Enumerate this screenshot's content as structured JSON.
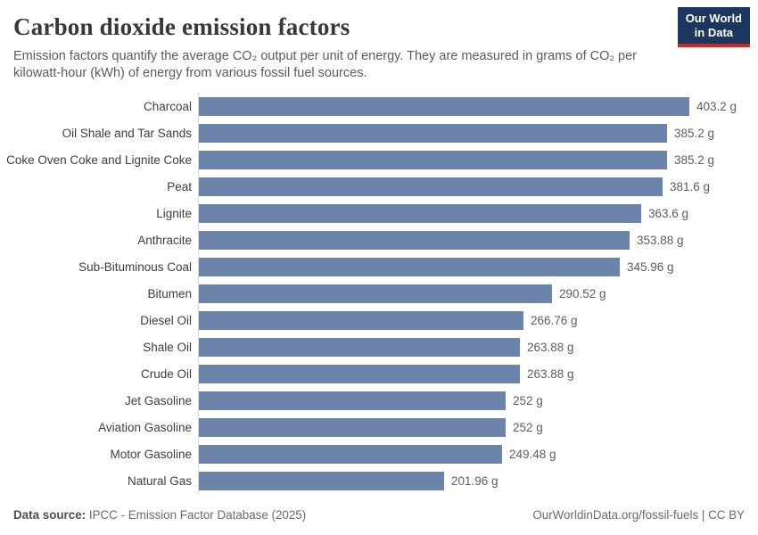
{
  "header": {
    "title": "Carbon dioxide emission factors",
    "subtitle": "Emission factors quantify the average CO₂ output per unit of energy. They are measured in grams of CO₂ per kilowatt-hour (kWh) of energy from various fossil fuel sources.",
    "logo": {
      "line1": "Our World",
      "line2": "in Data"
    }
  },
  "chart_data": {
    "type": "bar",
    "orientation": "horizontal",
    "title": "Carbon dioxide emission factors",
    "xlabel": "",
    "ylabel": "",
    "unit": "grams of CO₂ per kWh",
    "grid": false,
    "legend_position": "none",
    "xlim": [
      0,
      460
    ],
    "categories": [
      "Charcoal",
      "Oil Shale and Tar Sands",
      "Coke Oven Coke and Lignite Coke",
      "Peat",
      "Lignite",
      "Anthracite",
      "Sub-Bituminous Coal",
      "Bitumen",
      "Diesel Oil",
      "Shale Oil",
      "Crude Oil",
      "Jet Gasoline",
      "Aviation Gasoline",
      "Motor Gasoline",
      "Natural Gas"
    ],
    "values": [
      403.2,
      385.2,
      385.2,
      381.6,
      363.6,
      353.88,
      345.96,
      290.52,
      266.76,
      263.88,
      263.88,
      252,
      252,
      249.48,
      201.96
    ],
    "value_labels": [
      "403.2 g",
      "385.2 g",
      "385.2 g",
      "381.6 g",
      "363.6 g",
      "353.88 g",
      "345.96 g",
      "290.52 g",
      "266.76 g",
      "263.88 g",
      "263.88 g",
      "252 g",
      "252 g",
      "249.48 g",
      "201.96 g"
    ],
    "bar_color": "#6c84ac",
    "axis_line_color": "#d9d9d9"
  },
  "footer": {
    "source_label": "Data source:",
    "source_text": "IPCC - Emission Factor Database (2025)",
    "right_text": "OurWorldinData.org/fossil-fuels | CC BY"
  },
  "colors": {
    "logo_bg": "#1b375f",
    "logo_stripe": "#ce2920",
    "title_text": "#383838",
    "subtitle_text": "#5b5b5b",
    "bar": "#6c84ac"
  }
}
